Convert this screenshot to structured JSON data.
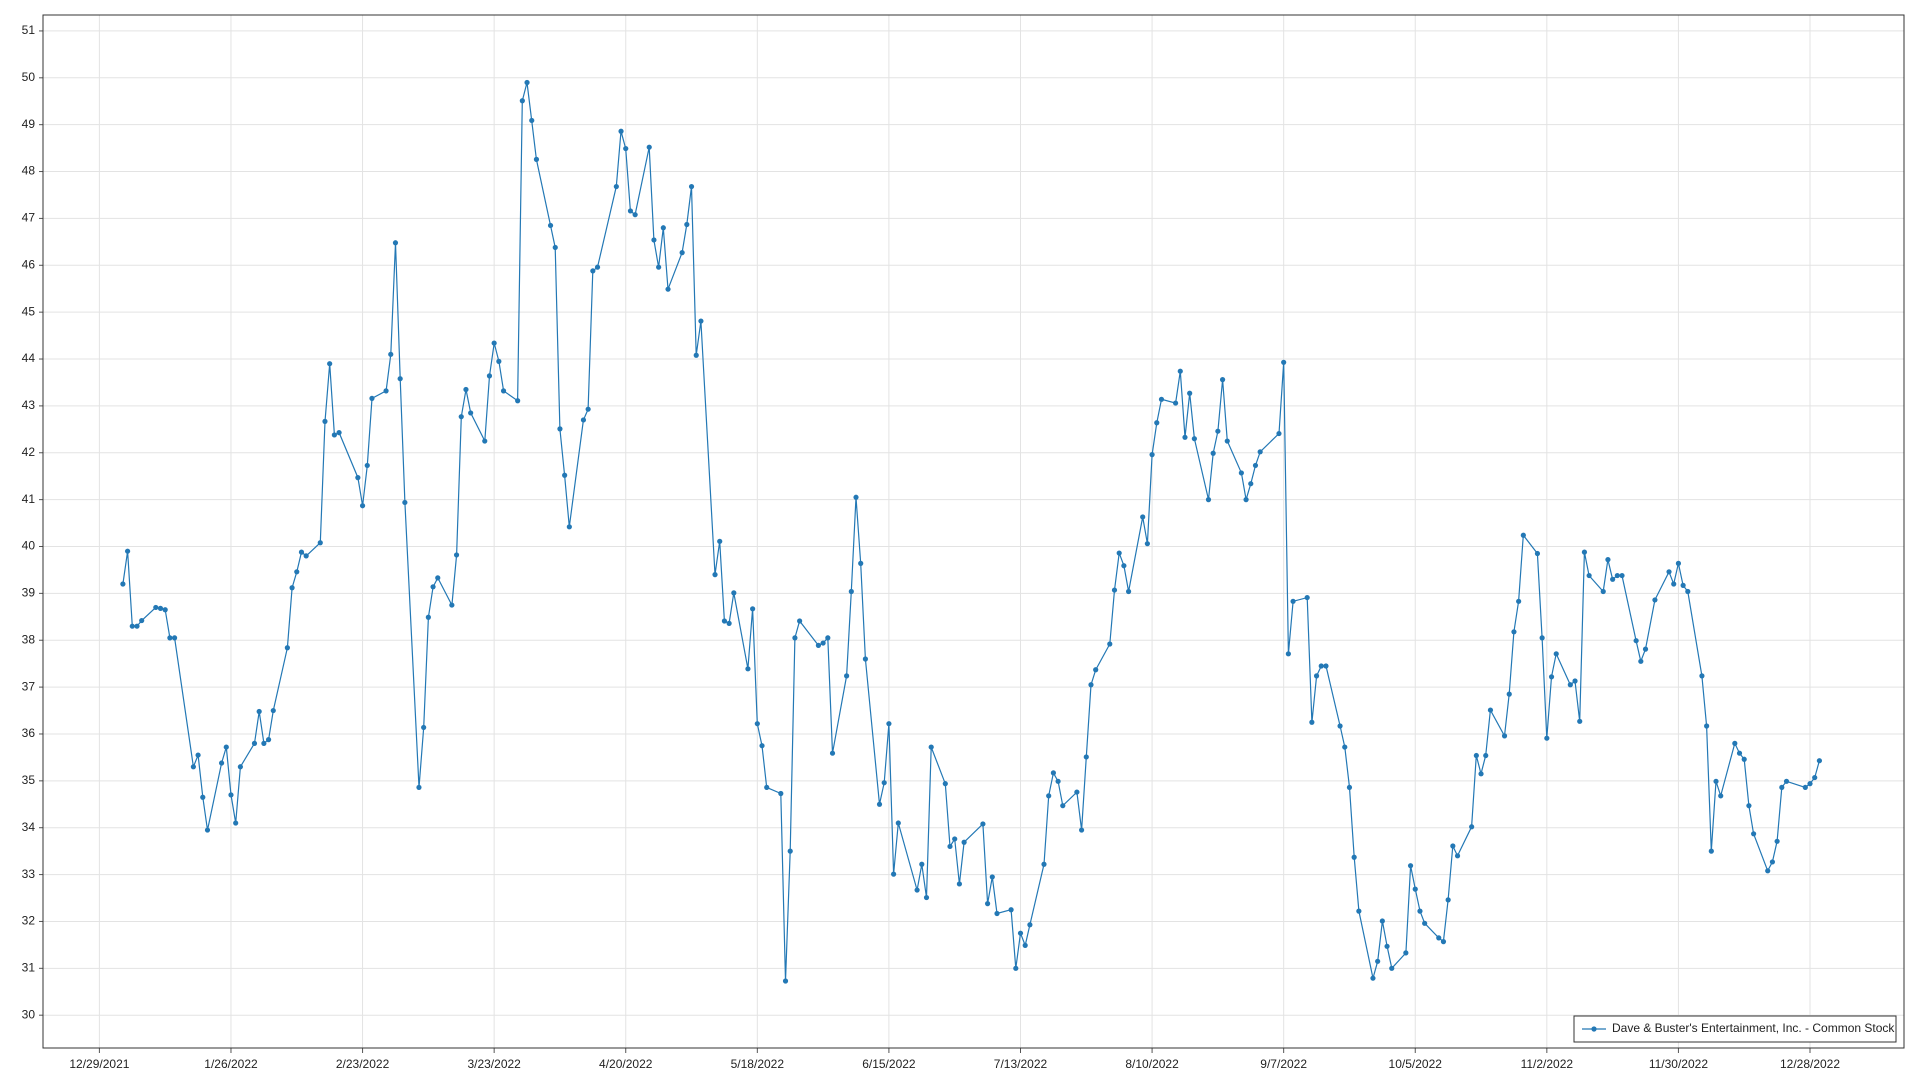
{
  "chart_data": {
    "type": "line",
    "x": [
      "1/3/2022",
      "1/4/2022",
      "1/5/2022",
      "1/6/2022",
      "1/7/2022",
      "1/10/2022",
      "1/11/2022",
      "1/12/2022",
      "1/13/2022",
      "1/14/2022",
      "1/18/2022",
      "1/19/2022",
      "1/20/2022",
      "1/21/2022",
      "1/24/2022",
      "1/25/2022",
      "1/26/2022",
      "1/27/2022",
      "1/28/2022",
      "1/31/2022",
      "2/1/2022",
      "2/2/2022",
      "2/3/2022",
      "2/4/2022",
      "2/7/2022",
      "2/8/2022",
      "2/9/2022",
      "2/10/2022",
      "2/11/2022",
      "2/14/2022",
      "2/15/2022",
      "2/16/2022",
      "2/17/2022",
      "2/18/2022",
      "2/22/2022",
      "2/23/2022",
      "2/24/2022",
      "2/25/2022",
      "2/28/2022",
      "3/1/2022",
      "3/2/2022",
      "3/3/2022",
      "3/4/2022",
      "3/7/2022",
      "3/8/2022",
      "3/9/2022",
      "3/10/2022",
      "3/11/2022",
      "3/14/2022",
      "3/15/2022",
      "3/16/2022",
      "3/17/2022",
      "3/18/2022",
      "3/21/2022",
      "3/22/2022",
      "3/23/2022",
      "3/24/2022",
      "3/25/2022",
      "3/28/2022",
      "3/29/2022",
      "3/30/2022",
      "3/31/2022",
      "4/1/2022",
      "4/4/2022",
      "4/5/2022",
      "4/6/2022",
      "4/7/2022",
      "4/8/2022",
      "4/11/2022",
      "4/12/2022",
      "4/13/2022",
      "4/14/2022",
      "4/18/2022",
      "4/19/2022",
      "4/20/2022",
      "4/21/2022",
      "4/22/2022",
      "4/25/2022",
      "4/26/2022",
      "4/27/2022",
      "4/28/2022",
      "4/29/2022",
      "5/2/2022",
      "5/3/2022",
      "5/4/2022",
      "5/5/2022",
      "5/6/2022",
      "5/9/2022",
      "5/10/2022",
      "5/11/2022",
      "5/12/2022",
      "5/13/2022",
      "5/16/2022",
      "5/17/2022",
      "5/18/2022",
      "5/19/2022",
      "5/20/2022",
      "5/23/2022",
      "5/24/2022",
      "5/25/2022",
      "5/26/2022",
      "5/27/2022",
      "5/31/2022",
      "6/1/2022",
      "6/2/2022",
      "6/3/2022",
      "6/6/2022",
      "6/7/2022",
      "6/8/2022",
      "6/9/2022",
      "6/10/2022",
      "6/13/2022",
      "6/14/2022",
      "6/15/2022",
      "6/16/2022",
      "6/17/2022",
      "6/21/2022",
      "6/22/2022",
      "6/23/2022",
      "6/24/2022",
      "6/27/2022",
      "6/28/2022",
      "6/29/2022",
      "6/30/2022",
      "7/1/2022",
      "7/5/2022",
      "7/6/2022",
      "7/7/2022",
      "7/8/2022",
      "7/11/2022",
      "7/12/2022",
      "7/13/2022",
      "7/14/2022",
      "7/15/2022",
      "7/18/2022",
      "7/19/2022",
      "7/20/2022",
      "7/21/2022",
      "7/22/2022",
      "7/25/2022",
      "7/26/2022",
      "7/27/2022",
      "7/28/2022",
      "7/29/2022",
      "8/1/2022",
      "8/2/2022",
      "8/3/2022",
      "8/4/2022",
      "8/5/2022",
      "8/8/2022",
      "8/9/2022",
      "8/10/2022",
      "8/11/2022",
      "8/12/2022",
      "8/15/2022",
      "8/16/2022",
      "8/17/2022",
      "8/18/2022",
      "8/19/2022",
      "8/22/2022",
      "8/23/2022",
      "8/24/2022",
      "8/25/2022",
      "8/26/2022",
      "8/29/2022",
      "8/30/2022",
      "8/31/2022",
      "9/1/2022",
      "9/2/2022",
      "9/6/2022",
      "9/7/2022",
      "9/8/2022",
      "9/9/2022",
      "9/12/2022",
      "9/13/2022",
      "9/14/2022",
      "9/15/2022",
      "9/16/2022",
      "9/19/2022",
      "9/20/2022",
      "9/21/2022",
      "9/22/2022",
      "9/23/2022",
      "9/26/2022",
      "9/27/2022",
      "9/28/2022",
      "9/29/2022",
      "9/30/2022",
      "10/3/2022",
      "10/4/2022",
      "10/5/2022",
      "10/6/2022",
      "10/7/2022",
      "10/10/2022",
      "10/11/2022",
      "10/12/2022",
      "10/13/2022",
      "10/14/2022",
      "10/17/2022",
      "10/18/2022",
      "10/19/2022",
      "10/20/2022",
      "10/21/2022",
      "10/24/2022",
      "10/25/2022",
      "10/26/2022",
      "10/27/2022",
      "10/28/2022",
      "10/31/2022",
      "11/1/2022",
      "11/2/2022",
      "11/3/2022",
      "11/4/2022",
      "11/7/2022",
      "11/8/2022",
      "11/9/2022",
      "11/10/2022",
      "11/11/2022",
      "11/14/2022",
      "11/15/2022",
      "11/16/2022",
      "11/17/2022",
      "11/18/2022",
      "11/21/2022",
      "11/22/2022",
      "11/23/2022",
      "11/25/2022",
      "11/28/2022",
      "11/29/2022",
      "11/30/2022",
      "12/1/2022",
      "12/2/2022",
      "12/5/2022",
      "12/6/2022",
      "12/7/2022",
      "12/8/2022",
      "12/9/2022",
      "12/12/2022",
      "12/13/2022",
      "12/14/2022",
      "12/15/2022",
      "12/16/2022",
      "12/19/2022",
      "12/20/2022",
      "12/21/2022",
      "12/22/2022",
      "12/23/2022",
      "12/27/2022",
      "12/28/2022",
      "12/29/2022",
      "12/30/2022"
    ],
    "series": [
      {
        "name": "Dave & Buster's Entertainment, Inc. - Common Stock",
        "color": "#2378b5",
        "values": [
          39.2,
          39.9,
          38.3,
          38.3,
          38.42,
          38.7,
          38.68,
          38.65,
          38.05,
          38.05,
          35.3,
          35.55,
          34.65,
          33.95,
          35.38,
          35.72,
          34.7,
          34.1,
          35.3,
          35.8,
          36.48,
          35.8,
          35.88,
          36.5,
          37.84,
          39.12,
          39.46,
          39.88,
          39.8,
          40.08,
          42.67,
          43.9,
          42.38,
          42.43,
          41.47,
          40.87,
          41.73,
          43.16,
          43.32,
          44.1,
          46.48,
          43.58,
          40.94,
          34.86,
          36.14,
          38.49,
          39.14,
          39.33,
          38.75,
          39.82,
          42.77,
          43.35,
          42.85,
          42.25,
          43.64,
          44.34,
          43.95,
          43.32,
          43.11,
          49.51,
          49.9,
          49.09,
          48.26,
          46.85,
          46.38,
          42.51,
          41.52,
          40.42,
          42.7,
          42.93,
          45.88,
          45.96,
          47.68,
          48.86,
          48.49,
          47.16,
          47.08,
          48.52,
          46.54,
          45.96,
          46.8,
          45.49,
          46.27,
          46.87,
          47.68,
          44.08,
          44.81,
          39.4,
          40.11,
          38.41,
          38.36,
          39.01,
          37.39,
          38.67,
          36.22,
          35.75,
          34.86,
          34.73,
          30.73,
          33.5,
          38.05,
          38.41,
          37.89,
          37.94,
          38.05,
          35.59,
          37.24,
          39.04,
          41.05,
          39.64,
          37.6,
          34.5,
          34.96,
          36.22,
          33.01,
          34.1,
          32.67,
          33.22,
          32.51,
          35.72,
          34.94,
          33.6,
          33.76,
          32.8,
          33.69,
          34.08,
          32.38,
          32.95,
          32.17,
          32.25,
          31.0,
          31.75,
          31.49,
          31.93,
          33.22,
          34.68,
          35.17,
          34.99,
          34.47,
          34.76,
          33.95,
          35.51,
          37.05,
          37.37,
          37.92,
          39.07,
          39.86,
          39.59,
          39.04,
          40.63,
          40.06,
          41.96,
          42.64,
          43.14,
          43.06,
          43.74,
          42.33,
          43.27,
          42.3,
          41.0,
          41.99,
          42.46,
          43.56,
          42.25,
          41.57,
          41.0,
          41.34,
          41.73,
          42.02,
          42.41,
          43.93,
          37.71,
          38.83,
          38.91,
          36.25,
          37.24,
          37.45,
          37.45,
          36.17,
          35.72,
          34.86,
          33.37,
          32.22,
          30.79,
          31.15,
          32.01,
          31.47,
          31.0,
          31.33,
          33.19,
          32.69,
          32.22,
          31.96,
          31.65,
          31.57,
          32.46,
          33.61,
          33.4,
          34.02,
          35.54,
          35.15,
          35.54,
          36.51,
          35.96,
          36.85,
          38.18,
          38.83,
          40.24,
          39.85,
          38.05,
          35.91,
          37.22,
          37.71,
          37.05,
          37.13,
          36.27,
          39.88,
          39.38,
          39.04,
          39.72,
          39.3,
          39.38,
          39.38,
          37.99,
          37.55,
          37.81,
          38.86,
          39.46,
          39.2,
          39.64,
          39.17,
          39.04,
          37.24,
          36.17,
          33.5,
          34.99,
          34.68,
          35.8,
          35.59,
          35.46,
          34.47,
          33.87,
          33.08,
          33.27,
          33.71,
          34.86,
          34.99,
          34.86,
          34.94,
          35.07,
          35.43
        ]
      }
    ],
    "xlim": [
      "12/17/2021",
      "1/17/2023"
    ],
    "xticks": [
      "12/29/2021",
      "1/26/2022",
      "2/23/2022",
      "3/23/2022",
      "4/20/2022",
      "5/18/2022",
      "6/15/2022",
      "7/13/2022",
      "8/10/2022",
      "9/7/2022",
      "10/5/2022",
      "11/2/2022",
      "11/30/2022",
      "12/28/2022"
    ],
    "ylim": [
      29.3,
      51.34
    ],
    "yticks": [
      30,
      31,
      32,
      33,
      34,
      35,
      36,
      37,
      38,
      39,
      40,
      41,
      42,
      43,
      44,
      45,
      46,
      47,
      48,
      49,
      50,
      51
    ],
    "grid": true,
    "legend": "lower right"
  }
}
